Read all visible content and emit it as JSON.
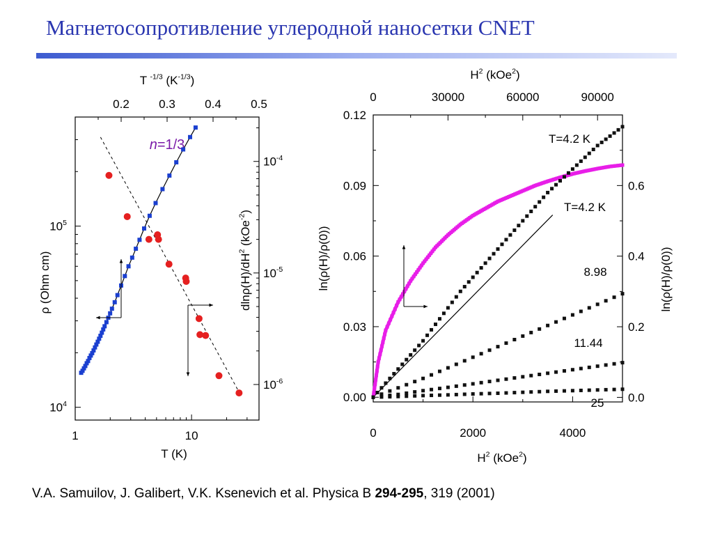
{
  "title": "Магнетосопротивление углеродной наносетки CNET",
  "citation": {
    "authors": "V.A. Samuilov, J. Galibert, V.K. Ksenevich et al. Physica B ",
    "volume": "294-295",
    "rest": ", 319 (2001)"
  },
  "colors": {
    "title": "#2a36b0",
    "blue_series": "#1a3fd0",
    "red_series": "#e52020",
    "magenta_series": "#e81ee8",
    "black_series": "#111111"
  },
  "chart_data": [
    {
      "type": "scatter",
      "xscale": "log",
      "xlabel": "T (K)",
      "xlim": [
        1,
        38
      ],
      "x_ticks": [
        {
          "v": 1,
          "label": "1"
        },
        {
          "v": 10,
          "label": "10"
        }
      ],
      "top_axis": {
        "label_base": "T",
        "label_exp": "-1/3",
        "label_unit_open": "(K",
        "label_unit_exp": "-1/3",
        "label_unit_close": ")",
        "ticks": [
          {
            "v": 0.2,
            "label": "0.2"
          },
          {
            "v": 0.3,
            "label": "0.3"
          },
          {
            "v": 0.4,
            "label": "0.4"
          },
          {
            "v": 0.5,
            "label": "0.5"
          }
        ],
        "xlim": [
          0.1,
          0.5
        ]
      },
      "ylabel": "ρ (Ohm cm)",
      "yscale": "log",
      "ylim": [
        8500,
        400000
      ],
      "y_ticks": [
        {
          "v": 10000,
          "base": "10",
          "exp": "4"
        },
        {
          "v": 100000,
          "base": "10",
          "exp": "5"
        }
      ],
      "right_axis": {
        "label": "dlnρ(H)/dH",
        "label_exp": "2",
        "label_unit": "(kOe",
        "label_unit_exp": "-2",
        "label_unit_close": ")",
        "ylim": [
          4.8e-07,
          0.00025
        ],
        "ticks": [
          {
            "v": 1e-06,
            "base": "10",
            "exp": "-6"
          },
          {
            "v": 1e-05,
            "base": "10",
            "exp": "-5"
          },
          {
            "v": 0.0001,
            "base": "10",
            "exp": "-4"
          }
        ]
      },
      "annotation": {
        "italic": "n",
        "text": "=1/3"
      },
      "series": [
        {
          "color": "blue",
          "axis": "left",
          "points": [
            [
              0.113,
              15500
            ],
            [
              0.116,
              15900
            ],
            [
              0.119,
              16400
            ],
            [
              0.122,
              16900
            ],
            [
              0.125,
              17500
            ],
            [
              0.128,
              18000
            ],
            [
              0.131,
              18700
            ],
            [
              0.134,
              19300
            ],
            [
              0.137,
              19900
            ],
            [
              0.14,
              20600
            ],
            [
              0.143,
              21400
            ],
            [
              0.146,
              22200
            ],
            [
              0.149,
              23000
            ],
            [
              0.152,
              23900
            ],
            [
              0.155,
              24800
            ],
            [
              0.158,
              25800
            ],
            [
              0.161,
              26900
            ],
            [
              0.164,
              28000
            ],
            [
              0.168,
              29500
            ],
            [
              0.172,
              31200
            ],
            [
              0.176,
              33000
            ],
            [
              0.18,
              35000
            ],
            [
              0.186,
              38000
            ],
            [
              0.192,
              41600
            ],
            [
              0.2,
              47000
            ],
            [
              0.208,
              53000
            ],
            [
              0.216,
              60000
            ],
            [
              0.224,
              67000
            ],
            [
              0.232,
              75000
            ],
            [
              0.24,
              84000
            ],
            [
              0.25,
              97000
            ],
            [
              0.262,
              114000
            ],
            [
              0.275,
              134000
            ],
            [
              0.29,
              160000
            ],
            [
              0.305,
              190000
            ],
            [
              0.32,
              225000
            ],
            [
              0.335,
              265000
            ],
            [
              0.35,
              310000
            ],
            [
              0.362,
              350000
            ]
          ]
        },
        {
          "color": "red",
          "axis": "right",
          "points": [
            [
              1.95,
              7.5e-05
            ],
            [
              2.8,
              3.2e-05
            ],
            [
              4.3,
              2e-05
            ],
            [
              5.1,
              2.2e-05
            ],
            [
              5.2,
              2e-05
            ],
            [
              6.4,
              1.2e-05
            ],
            [
              8.9,
              9e-06
            ],
            [
              9.0,
              8.4e-06
            ],
            [
              11.6,
              3.9e-06
            ],
            [
              11.8,
              2.8e-06
            ],
            [
              13.2,
              2.75e-06
            ],
            [
              17.2,
              1.2e-06
            ],
            [
              25.6,
              8.4e-07
            ]
          ]
        }
      ]
    },
    {
      "type": "scatter",
      "xlabel": "H",
      "xlabel_exp": "2",
      "xlabel_unit": "(kOe",
      "xlabel_unit_exp": "2",
      "xlabel_unit_close": ")",
      "xlim": [
        0,
        5000
      ],
      "x_ticks": [
        0,
        2000,
        4000
      ],
      "top_axis": {
        "label": "H",
        "label_exp": "2",
        "label_unit": "(kOe",
        "label_unit_exp": "2",
        "label_unit_close": ")",
        "xlim": [
          0,
          100000
        ],
        "ticks": [
          0,
          30000,
          60000,
          90000
        ]
      },
      "ylabel": "ln(ρ(H)/ρ(0))",
      "ylim": [
        -0.002,
        0.12
      ],
      "y_ticks": [
        "0.00",
        "0.03",
        "0.06",
        "0.09",
        "0.12"
      ],
      "right_axis": {
        "label": "ln(ρ(H)/ρ(0))",
        "ylim": [
          -0.013,
          0.8
        ],
        "ticks": [
          "0.0",
          "0.2",
          "0.4",
          "0.6"
        ]
      },
      "series": [
        {
          "name": "T=4.2 K",
          "color": "magenta",
          "axis": "top-right",
          "points": [
            [
              0,
              0.0
            ],
            [
              2000,
              0.1
            ],
            [
              5000,
              0.19
            ],
            [
              10000,
              0.27
            ],
            [
              15000,
              0.33
            ],
            [
              20000,
              0.38
            ],
            [
              25000,
              0.425
            ],
            [
              30000,
              0.46
            ],
            [
              35000,
              0.49
            ],
            [
              40000,
              0.515
            ],
            [
              45000,
              0.535
            ],
            [
              50000,
              0.555
            ],
            [
              55000,
              0.57
            ],
            [
              60000,
              0.585
            ],
            [
              65000,
              0.6
            ],
            [
              70000,
              0.612
            ],
            [
              75000,
              0.623
            ],
            [
              80000,
              0.633
            ],
            [
              85000,
              0.641
            ],
            [
              90000,
              0.648
            ],
            [
              95000,
              0.654
            ],
            [
              100000,
              0.658
            ]
          ]
        },
        {
          "name": "T=4.2 K",
          "color": "black",
          "axis": "bottom-left",
          "points": [
            [
              0,
              0.0
            ],
            [
              250,
              0.006
            ],
            [
              500,
              0.012
            ],
            [
              750,
              0.018
            ],
            [
              1000,
              0.024
            ],
            [
              1250,
              0.031
            ],
            [
              1500,
              0.038
            ],
            [
              1750,
              0.045
            ],
            [
              2000,
              0.051
            ],
            [
              2250,
              0.057
            ],
            [
              2500,
              0.063
            ],
            [
              2750,
              0.069
            ],
            [
              3000,
              0.075
            ],
            [
              3250,
              0.081
            ],
            [
              3500,
              0.087
            ],
            [
              3750,
              0.092
            ],
            [
              4000,
              0.097
            ],
            [
              4250,
              0.102
            ],
            [
              4500,
              0.107
            ],
            [
              4750,
              0.111
            ],
            [
              5000,
              0.115
            ]
          ]
        },
        {
          "name": "8.98",
          "color": "black",
          "axis": "bottom-left",
          "points": [
            [
              0,
              0.0
            ],
            [
              500,
              0.004
            ],
            [
              1000,
              0.008
            ],
            [
              1500,
              0.0125
            ],
            [
              2000,
              0.017
            ],
            [
              2500,
              0.0215
            ],
            [
              3000,
              0.026
            ],
            [
              3500,
              0.0305
            ],
            [
              4000,
              0.035
            ],
            [
              4500,
              0.0395
            ],
            [
              5000,
              0.044
            ]
          ]
        },
        {
          "name": "11.44",
          "color": "black",
          "axis": "bottom-left",
          "points": [
            [
              0,
              0.0
            ],
            [
              500,
              0.0012
            ],
            [
              1000,
              0.0028
            ],
            [
              1500,
              0.0042
            ],
            [
              2000,
              0.0057
            ],
            [
              2500,
              0.0072
            ],
            [
              3000,
              0.0087
            ],
            [
              3500,
              0.0102
            ],
            [
              4000,
              0.0117
            ],
            [
              4500,
              0.0132
            ],
            [
              5000,
              0.0147
            ]
          ]
        },
        {
          "name": "25",
          "color": "black",
          "axis": "bottom-left",
          "points": [
            [
              0,
              0.0
            ],
            [
              500,
              0.0003
            ],
            [
              1000,
              0.0007
            ],
            [
              1500,
              0.001
            ],
            [
              2000,
              0.0014
            ],
            [
              2500,
              0.0017
            ],
            [
              3000,
              0.0021
            ],
            [
              3500,
              0.0025
            ],
            [
              4000,
              0.0028
            ],
            [
              4500,
              0.0031
            ],
            [
              5000,
              0.0034
            ]
          ]
        }
      ]
    }
  ]
}
